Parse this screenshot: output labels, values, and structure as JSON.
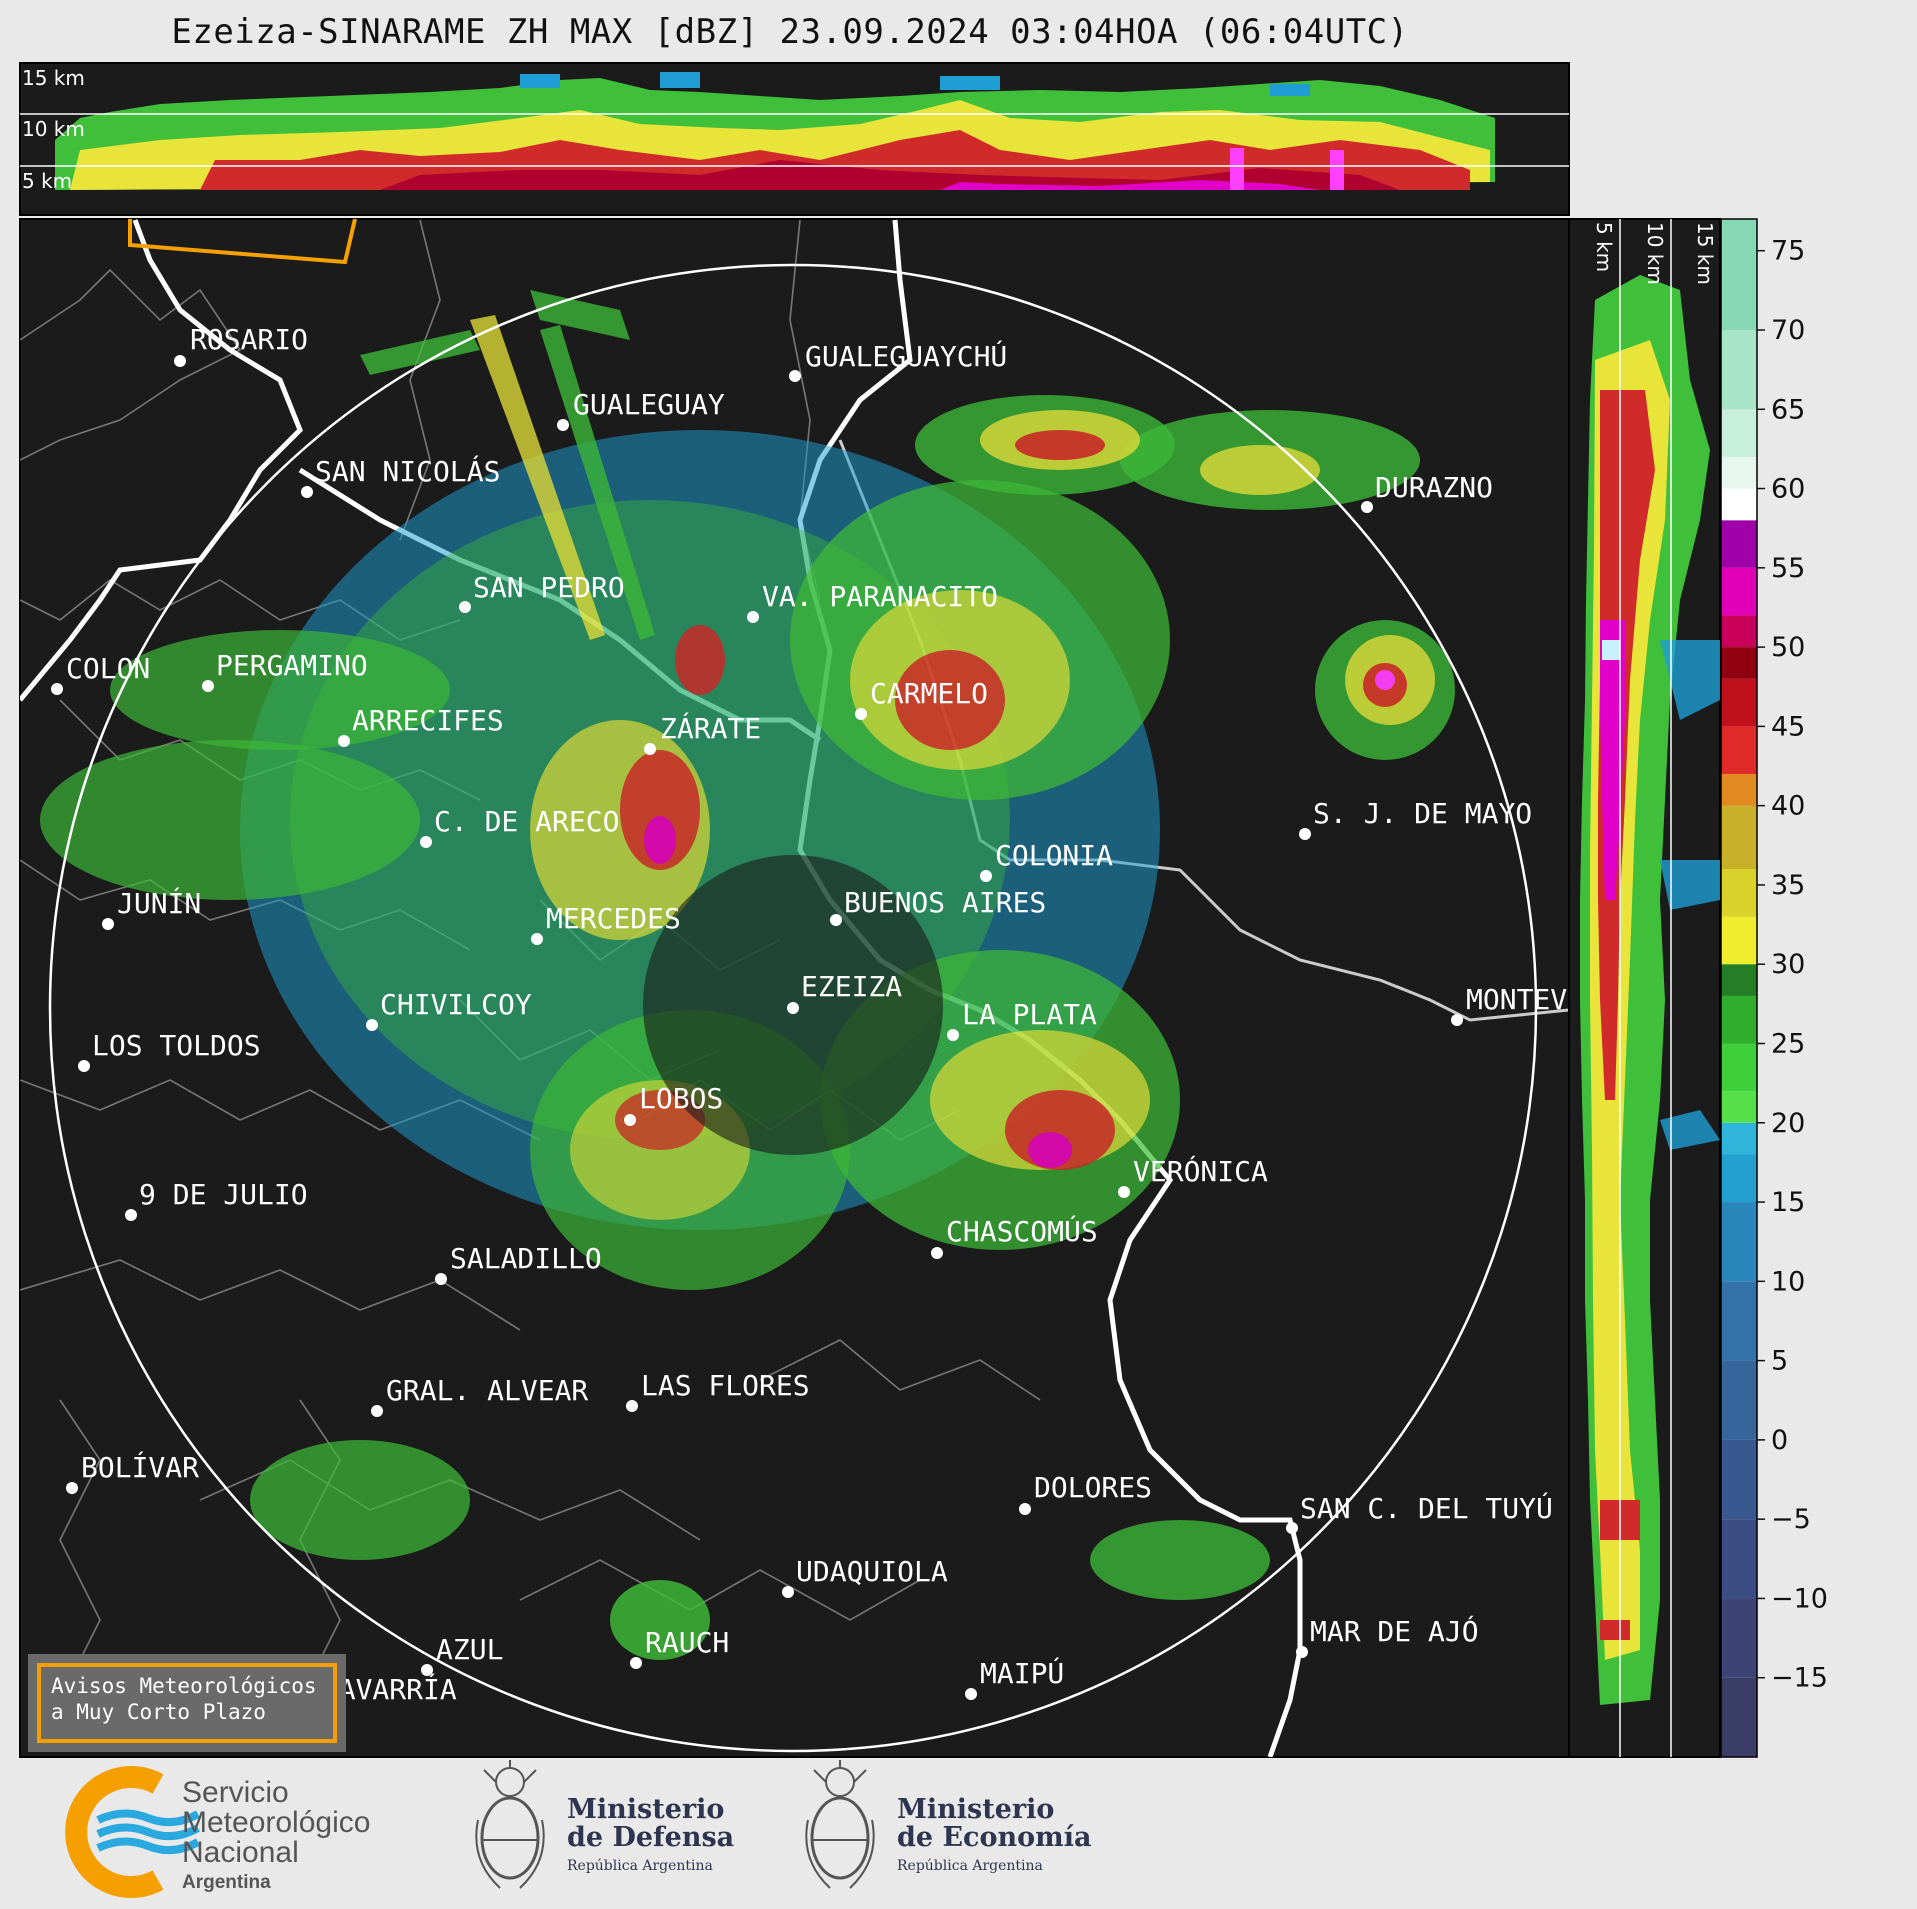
{
  "title": "Ezeiza-SINARAME ZH MAX [dBZ] 23.09.2024 03:04HOA (06:04UTC)",
  "top_panel_altitudes": [
    "15 km",
    "10 km",
    "5 km"
  ],
  "side_panel_altitudes": [
    "5 km",
    "10 km",
    "15 km"
  ],
  "colorbar": {
    "unit": "dBZ",
    "ticks": [
      "75",
      "70",
      "65",
      "60",
      "55",
      "50",
      "45",
      "40",
      "35",
      "30",
      "25",
      "20",
      "15",
      "10",
      "5",
      "0",
      "−5",
      "−10",
      "−15"
    ]
  },
  "cities": [
    {
      "name": "ROSARIO"
    },
    {
      "name": "GUALEGUAYCHÚ"
    },
    {
      "name": "GUALEGUAY"
    },
    {
      "name": "SAN NICOLÁS"
    },
    {
      "name": "DURAZNO"
    },
    {
      "name": "SAN PEDRO"
    },
    {
      "name": "VA. PARANACITO"
    },
    {
      "name": "COLON"
    },
    {
      "name": "PERGAMINO"
    },
    {
      "name": "CARMELO"
    },
    {
      "name": "ARRECIFES"
    },
    {
      "name": "ZÁRATE"
    },
    {
      "name": "S. J. DE MAYO"
    },
    {
      "name": "C. DE ARECO"
    },
    {
      "name": "COLONIA"
    },
    {
      "name": "JUNÍN"
    },
    {
      "name": "BUENOS AIRES"
    },
    {
      "name": "MERCEDES"
    },
    {
      "name": "EZEIZA"
    },
    {
      "name": "MONTEVIDEO"
    },
    {
      "name": "CHIVILCOY"
    },
    {
      "name": "LA PLATA"
    },
    {
      "name": "LOS TOLDOS"
    },
    {
      "name": "LOBOS"
    },
    {
      "name": "VERÓNICA"
    },
    {
      "name": "9 DE JULIO"
    },
    {
      "name": "CHASCOMÚS"
    },
    {
      "name": "SALADILLO"
    },
    {
      "name": "GRAL. ALVEAR"
    },
    {
      "name": "LAS FLORES"
    },
    {
      "name": "BOLÍVAR"
    },
    {
      "name": "DOLORES"
    },
    {
      "name": "SAN C. DEL TUYÚ"
    },
    {
      "name": "UDAQUIOLA"
    },
    {
      "name": "MAR DE AJÓ"
    },
    {
      "name": "AZUL"
    },
    {
      "name": "RAUCH"
    },
    {
      "name": "OLAVARRÍA"
    },
    {
      "name": "MAIPÚ"
    }
  ],
  "aviso": {
    "line1": "Avisos Meteorológicos",
    "line2": "a Muy Corto Plazo"
  },
  "logos": {
    "smn": [
      "Servicio",
      "Meteorológico",
      "Nacional",
      "Argentina"
    ],
    "defensa": [
      "Ministerio",
      "de Defensa",
      "República Argentina"
    ],
    "economia": [
      "Ministerio",
      "de Economía",
      "República Argentina"
    ]
  }
}
